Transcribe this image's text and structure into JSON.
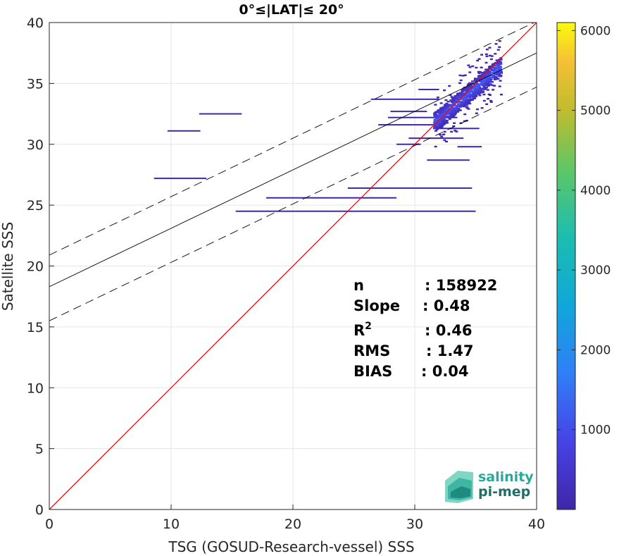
{
  "chart_data": {
    "type": "heatmap",
    "title": "0°≤|LAT|≤ 20°",
    "xlabel": "TSG (GOSUD-Research-vessel) SSS",
    "ylabel": "Satellite SSS",
    "xlim": [
      0,
      40
    ],
    "ylim": [
      0,
      40
    ],
    "xticks": [
      "0",
      "10",
      "20",
      "30",
      "40"
    ],
    "yticks": [
      "0",
      "5",
      "10",
      "15",
      "20",
      "25",
      "30",
      "35",
      "40"
    ],
    "grid": true,
    "colorbar": {
      "range": [
        0,
        6100
      ],
      "ticks": [
        "1000",
        "2000",
        "3000",
        "4000",
        "5000",
        "6000"
      ],
      "colormap": "parula"
    },
    "lines": [
      {
        "kind": "identity",
        "color": "#ff0000",
        "slope": 1,
        "intercept": 0
      },
      {
        "kind": "regression",
        "color": "#000000",
        "slope": 0.48,
        "intercept": 18.3
      },
      {
        "kind": "upper-bound",
        "color": "#000000",
        "dashed": true,
        "slope": 0.48,
        "intercept": 20.9
      },
      {
        "kind": "lower-bound",
        "color": "#000000",
        "dashed": true,
        "slope": 0.48,
        "intercept": 15.5
      }
    ],
    "stats": [
      {
        "label": "n",
        "value": ": 158922"
      },
      {
        "label": "Slope",
        "value": ": 0.48"
      },
      {
        "label": "R",
        "sup": "2",
        "value": ": 0.46"
      },
      {
        "label": "RMS",
        "value": ": 1.47"
      },
      {
        "label": "BIAS",
        "value": ": 0.04"
      }
    ],
    "density_segments": [
      {
        "x0": 12.3,
        "x1": 15.8,
        "y": 32.5,
        "count": 40
      },
      {
        "x0": 9.7,
        "x1": 12.4,
        "y": 31.1,
        "count": 40
      },
      {
        "x0": 8.6,
        "x1": 12.9,
        "y": 27.2,
        "count": 40
      },
      {
        "x0": 17.8,
        "x1": 28.5,
        "y": 25.6,
        "count": 20
      },
      {
        "x0": 24.5,
        "x1": 34.7,
        "y": 26.4,
        "count": 60
      },
      {
        "x0": 15.3,
        "x1": 35.0,
        "y": 24.5,
        "count": 120
      },
      {
        "x0": 26.4,
        "x1": 32.0,
        "y": 33.7,
        "count": 80
      },
      {
        "x0": 27.8,
        "x1": 33.5,
        "y": 32.2,
        "count": 80
      },
      {
        "x0": 27.0,
        "x1": 31.5,
        "y": 31.6,
        "count": 60
      },
      {
        "x0": 28.0,
        "x1": 31.0,
        "y": 32.7,
        "count": 60
      },
      {
        "x0": 29.5,
        "x1": 34.0,
        "y": 30.5,
        "count": 60
      },
      {
        "x0": 28.5,
        "x1": 30.5,
        "y": 30.0,
        "count": 50
      },
      {
        "x0": 31.5,
        "x1": 35.3,
        "y": 31.3,
        "count": 60
      },
      {
        "x0": 33.5,
        "x1": 35.5,
        "y": 29.8,
        "count": 40
      },
      {
        "x0": 31.0,
        "x1": 34.5,
        "y": 28.7,
        "count": 60
      },
      {
        "x0": 30.3,
        "x1": 32.0,
        "y": 34.5,
        "count": 40
      }
    ],
    "density_core": {
      "x_range": [
        31.5,
        37.0
      ],
      "y_center_at_x32": 32.2,
      "y_center_at_x36.5": 36.0,
      "peak_count": 1200
    }
  },
  "logo": {
    "line1": "salinity",
    "line2": "pi-mep"
  }
}
